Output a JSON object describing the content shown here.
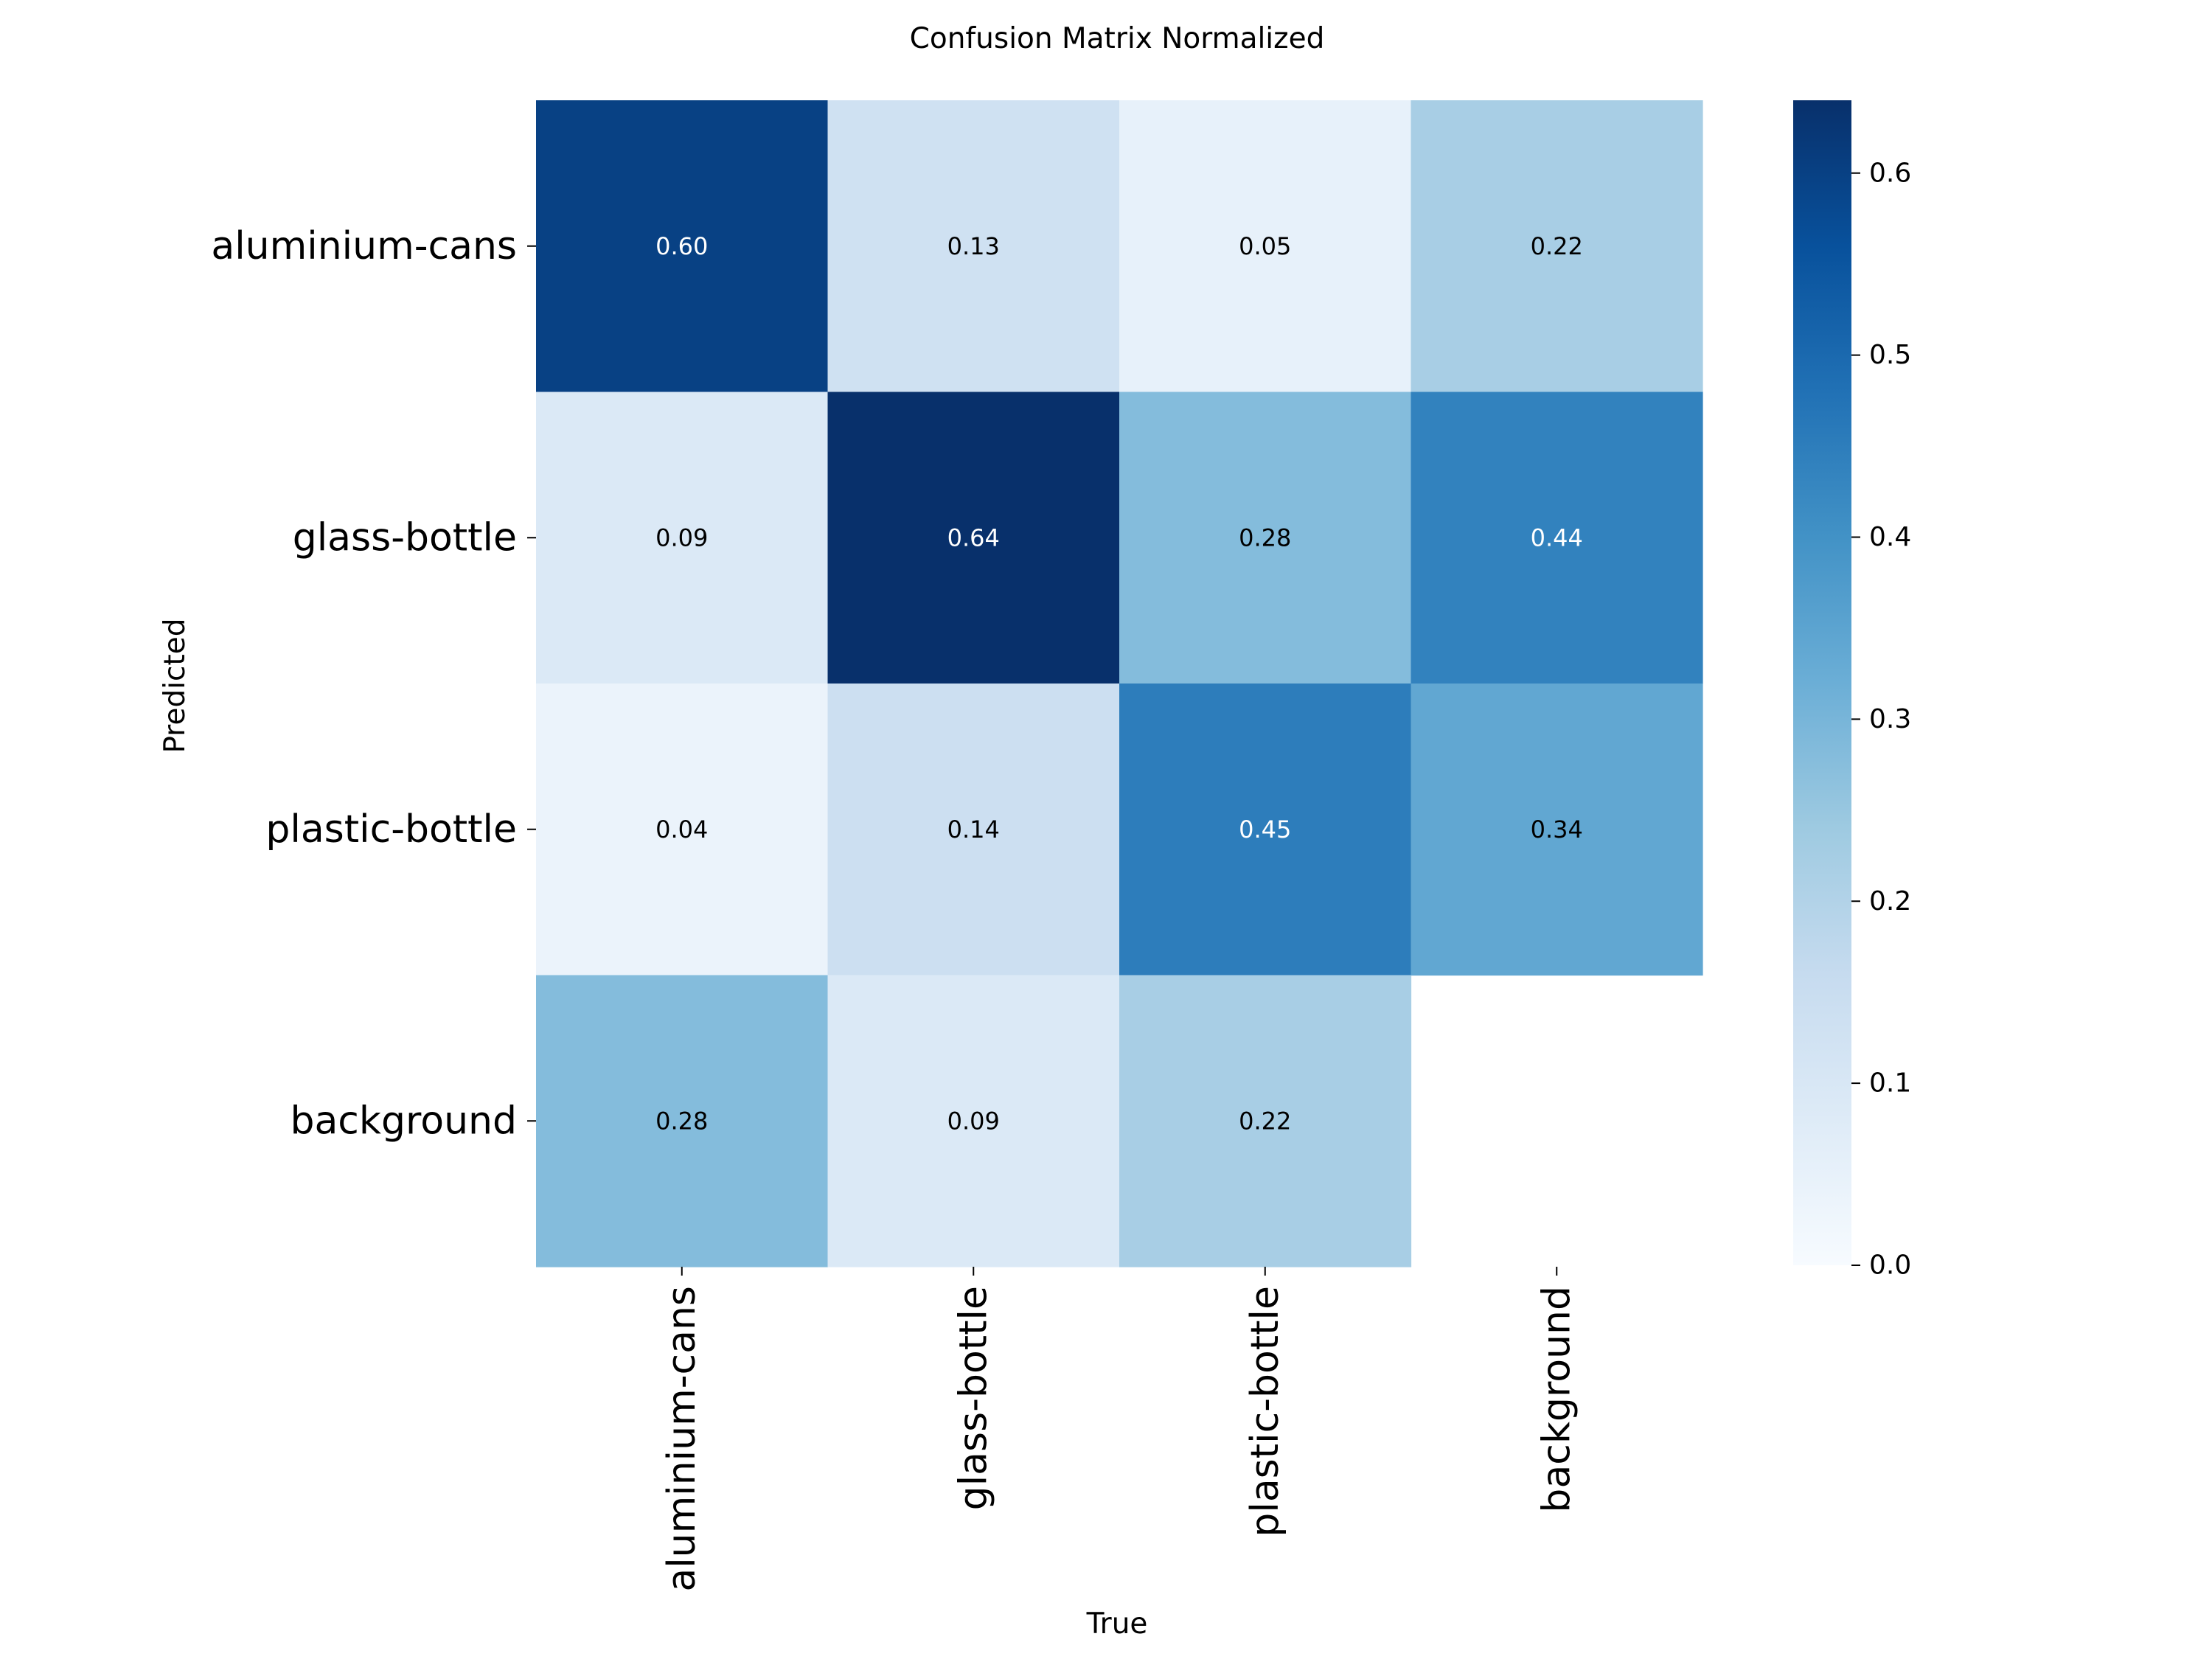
{
  "chart_data": {
    "type": "heatmap",
    "title": "Confusion Matrix Normalized",
    "xlabel": "True",
    "ylabel": "Predicted",
    "x_categories": [
      "aluminium-cans",
      "glass-bottle",
      "plastic-bottle",
      "background"
    ],
    "y_categories": [
      "aluminium-cans",
      "glass-bottle",
      "plastic-bottle",
      "background"
    ],
    "values": [
      [
        0.6,
        0.13,
        0.05,
        0.22
      ],
      [
        0.09,
        0.64,
        0.28,
        0.44
      ],
      [
        0.04,
        0.14,
        0.45,
        0.34
      ],
      [
        0.28,
        0.09,
        0.22,
        null
      ]
    ],
    "value_labels": [
      [
        "0.60",
        "0.13",
        "0.05",
        "0.22"
      ],
      [
        "0.09",
        "0.64",
        "0.28",
        "0.44"
      ],
      [
        "0.04",
        "0.14",
        "0.45",
        "0.34"
      ],
      [
        "0.28",
        "0.09",
        "0.22",
        ""
      ]
    ],
    "colormap": "Blues",
    "colorbar": {
      "min": 0.0,
      "max": 0.64,
      "ticks": [
        0.0,
        0.1,
        0.2,
        0.3,
        0.4,
        0.5,
        0.6
      ],
      "tick_labels": [
        "0.0",
        "0.1",
        "0.2",
        "0.3",
        "0.4",
        "0.5",
        "0.6"
      ],
      "location": "right"
    },
    "grid": false
  }
}
